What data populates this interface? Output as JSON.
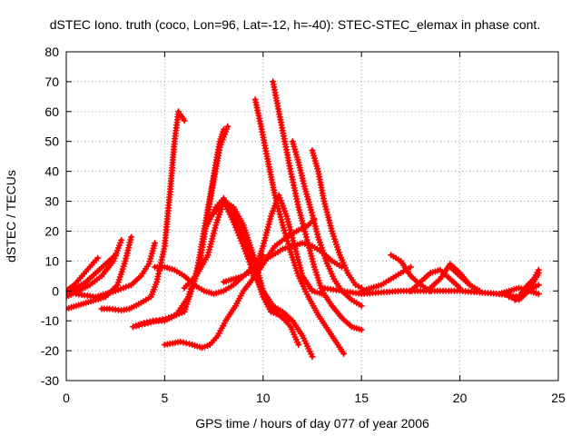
{
  "chart_data": {
    "type": "scatter",
    "title": "dSTEC Iono. truth (coco, Lon=96, Lat=-12, h=-40): STEC-STEC_elemax in phase cont.",
    "xlabel": "GPS time / hours of day 077 of year 2006",
    "ylabel": "dSTEC  / TECUs",
    "xlim": [
      0,
      25
    ],
    "ylim": [
      -30,
      80
    ],
    "xticks": [
      0,
      5,
      10,
      15,
      20,
      25
    ],
    "yticks": [
      -30,
      -20,
      -10,
      0,
      10,
      20,
      30,
      40,
      50,
      60,
      70,
      80
    ],
    "grid": true,
    "legend": "none",
    "color": "#ff0000",
    "series": [
      {
        "x": [
          0.0,
          0.4,
          0.8,
          1.2,
          1.6
        ],
        "y": [
          0,
          2,
          5,
          8,
          11
        ]
      },
      {
        "x": [
          0.0,
          0.5,
          1.0,
          1.5,
          2.0,
          2.5
        ],
        "y": [
          -1,
          1,
          3,
          6,
          9,
          12
        ]
      },
      {
        "x": [
          0.0,
          0.6,
          1.2,
          1.8,
          2.4,
          2.8
        ],
        "y": [
          -2,
          0,
          2,
          5,
          10,
          17
        ]
      },
      {
        "x": [
          0.0,
          1.0,
          2.0,
          2.6,
          3.0,
          3.3
        ],
        "y": [
          -6,
          -4,
          -2,
          2,
          10,
          18
        ]
      },
      {
        "x": [
          0.5,
          1.5,
          2.5,
          3.3,
          3.8,
          4.2,
          4.5
        ],
        "y": [
          -1,
          -2,
          0,
          2,
          5,
          9,
          16
        ]
      },
      {
        "x": [
          1.8,
          2.2,
          2.8,
          3.2,
          3.8,
          4.3,
          4.6,
          5.0,
          5.3,
          5.5,
          5.7,
          5.8,
          6.0
        ],
        "y": [
          -6,
          -6,
          -6.5,
          -6,
          -4,
          -2,
          3,
          15,
          35,
          50,
          60,
          59,
          57
        ]
      },
      {
        "x": [
          3.4,
          3.8,
          4.4,
          5.0,
          5.6,
          6.2,
          6.8,
          7.3,
          7.8,
          8.2
        ],
        "y": [
          -12,
          -11,
          -10,
          -10,
          -8,
          -2,
          10,
          30,
          48,
          55
        ]
      },
      {
        "x": [
          3.4,
          4.0,
          4.6,
          5.2,
          6.0,
          6.6,
          7.0,
          7.4,
          7.8,
          8.0
        ],
        "y": [
          -12,
          -11,
          -10,
          -9,
          -7,
          5,
          20,
          35,
          50,
          54
        ]
      },
      {
        "x": [
          5.0,
          5.8,
          6.4,
          6.9,
          7.3,
          7.7,
          8.1,
          8.6,
          9.0,
          9.6,
          10.1,
          10.6,
          11.2,
          11.7,
          12.3,
          12.6
        ],
        "y": [
          -18,
          -17,
          -18,
          -19,
          -18,
          -15,
          -10,
          -5,
          0,
          5,
          10,
          15,
          18,
          20,
          22,
          24
        ]
      },
      {
        "x": [
          4.5,
          5.0,
          5.5,
          6.0,
          6.5,
          7.0,
          7.5,
          8.0,
          8.5,
          9.0,
          9.5,
          10.0
        ],
        "y": [
          8,
          8,
          7,
          5,
          2,
          0,
          -1,
          0,
          2,
          5,
          8,
          12
        ]
      },
      {
        "x": [
          6.0,
          6.6,
          7.2,
          7.6,
          8.0,
          8.5,
          9.0,
          9.5,
          10.0,
          10.5,
          11.0,
          11.5,
          12.0,
          12.5
        ],
        "y": [
          1,
          5,
          12,
          22,
          30,
          28,
          22,
          12,
          0,
          -5,
          -7,
          -10,
          -15,
          -22
        ]
      },
      {
        "x": [
          7.0,
          7.6,
          8.0,
          8.5,
          9.0,
          9.5,
          10.0,
          10.4,
          10.8,
          11.0,
          11.4,
          11.8
        ],
        "y": [
          20,
          28,
          31,
          26,
          18,
          8,
          -2,
          -7,
          -8,
          -9,
          -12,
          -18
        ]
      },
      {
        "x": [
          7.5,
          8.0,
          8.5,
          9.0,
          9.4,
          9.8,
          10.2,
          10.6,
          11.0,
          11.3
        ],
        "y": [
          26,
          30,
          23,
          15,
          8,
          2,
          -3,
          -7,
          -9,
          -10
        ]
      },
      {
        "x": [
          8.0,
          8.5,
          9.0,
          9.5,
          10.0,
          10.5,
          11.0,
          11.5,
          12.0,
          12.5,
          13.0,
          13.5,
          14.0
        ],
        "y": [
          3,
          4,
          5,
          7,
          10,
          12,
          14,
          15,
          16,
          15,
          13,
          10,
          8
        ]
      },
      {
        "x": [
          9.6,
          9.9,
          10.2,
          10.6,
          11.0,
          11.4,
          11.8,
          12.3,
          12.8,
          13.3,
          13.8,
          14.1
        ],
        "y": [
          64,
          55,
          45,
          32,
          22,
          13,
          5,
          -2,
          -8,
          -13,
          -18,
          -21
        ]
      },
      {
        "x": [
          10.5,
          10.8,
          11.1,
          11.4,
          11.8,
          12.2,
          12.6,
          13.0,
          13.5,
          14.0,
          14.5,
          15.0
        ],
        "y": [
          70,
          60,
          50,
          40,
          28,
          18,
          8,
          0,
          -5,
          -9,
          -12,
          -13
        ]
      },
      {
        "x": [
          11.5,
          11.8,
          12.1,
          12.4,
          12.8,
          13.2,
          13.6,
          14.0,
          14.5,
          15.0
        ],
        "y": [
          50,
          43,
          35,
          28,
          18,
          10,
          4,
          0,
          -3,
          -5
        ]
      },
      {
        "x": [
          12.5,
          12.8,
          13.1,
          13.5,
          13.9,
          14.3,
          14.7,
          15.0
        ],
        "y": [
          47,
          40,
          30,
          20,
          12,
          6,
          2,
          1
        ]
      },
      {
        "x": [
          9.5,
          10.0,
          10.4,
          10.8,
          11.2,
          11.6,
          12.0,
          12.5,
          13.0
        ],
        "y": [
          5,
          15,
          25,
          32,
          25,
          15,
          5,
          0,
          -1
        ]
      },
      {
        "x": [
          13.0,
          14.0,
          15.0,
          16.0,
          17.0,
          18.0,
          19.0,
          20.0,
          21.0,
          22.0,
          23.0,
          23.5,
          24.0
        ],
        "y": [
          1,
          0,
          -1,
          -0.5,
          0,
          0,
          0,
          0,
          -0.5,
          -1,
          -2,
          0,
          2
        ]
      },
      {
        "x": [
          15.0,
          15.5,
          16.0,
          16.5,
          17.0,
          17.5
        ],
        "y": [
          0,
          1,
          2,
          4,
          6,
          8
        ]
      },
      {
        "x": [
          16.5,
          17.0,
          17.5,
          18.0,
          18.5
        ],
        "y": [
          12,
          10,
          5,
          2,
          0
        ]
      },
      {
        "x": [
          17.5,
          18.0,
          18.5,
          19.0,
          19.5,
          20.0
        ],
        "y": [
          0,
          3,
          6,
          7,
          4,
          1
        ]
      },
      {
        "x": [
          18.5,
          19.0,
          19.5,
          20.0,
          20.5,
          21.0
        ],
        "y": [
          1,
          4,
          9,
          6,
          2,
          0
        ]
      },
      {
        "x": [
          19.5,
          20.0,
          20.5,
          21.0
        ],
        "y": [
          8,
          5,
          2,
          0
        ]
      },
      {
        "x": [
          22.5,
          23.0,
          23.5,
          24.0
        ],
        "y": [
          -2,
          -3,
          0,
          6
        ]
      },
      {
        "x": [
          22.8,
          23.2,
          23.6,
          24.0
        ],
        "y": [
          -3,
          -1,
          2,
          7
        ]
      },
      {
        "x": [
          23.0,
          23.3,
          23.6,
          23.9
        ],
        "y": [
          -2,
          1,
          3,
          5
        ]
      },
      {
        "x": [
          22.0,
          22.5,
          23.0,
          23.5,
          24.0
        ],
        "y": [
          -1,
          0,
          1,
          0,
          -1
        ]
      }
    ]
  }
}
